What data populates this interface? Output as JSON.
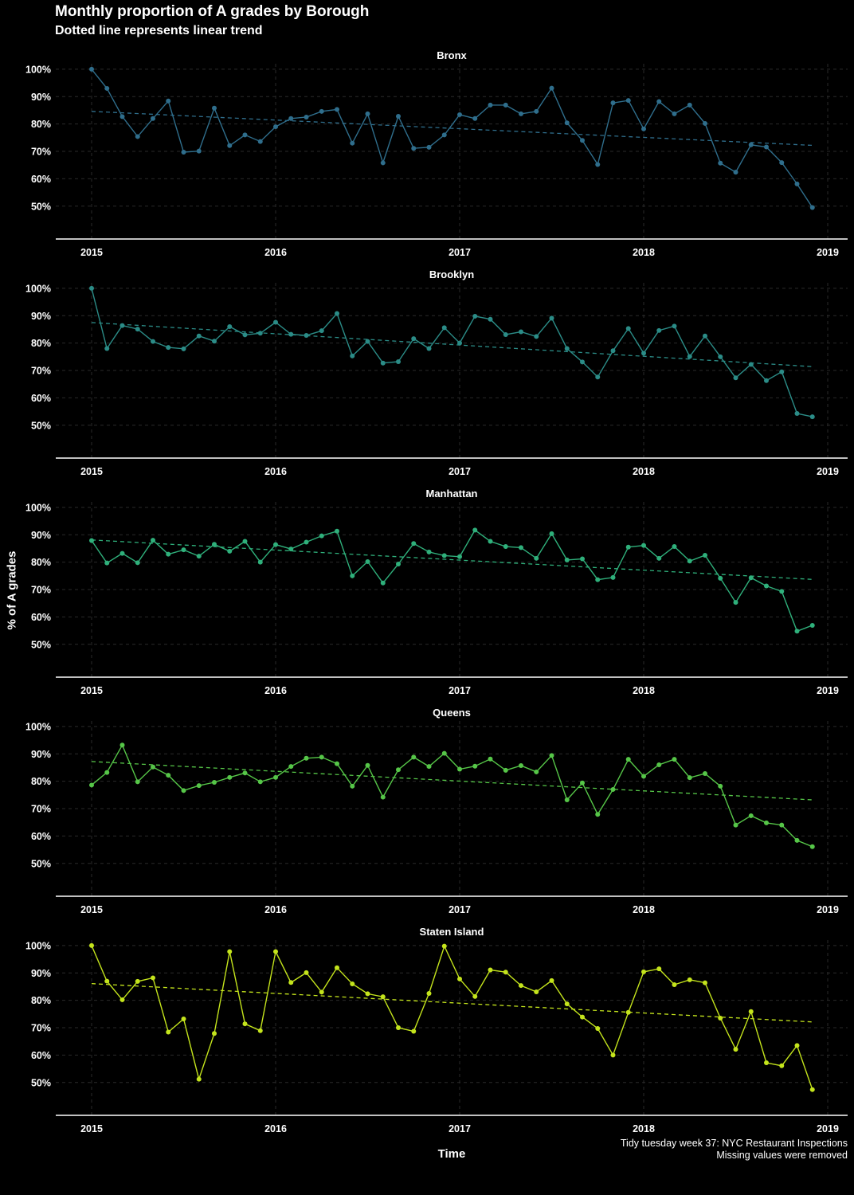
{
  "chart_data": {
    "type": "line",
    "title": "Monthly proportion of A grades by Borough",
    "subtitle": "Dotted line represents linear trend",
    "xlabel": "Time",
    "ylabel": "% of A grades",
    "caption": [
      "Tidy tuesday week 37: NYC Restaurant Inspections",
      "Missing values were removed"
    ],
    "x_ticks": [
      2015,
      2016,
      2017,
      2018,
      2019
    ],
    "y_ticks": [
      "50%",
      "60%",
      "70%",
      "80%",
      "90%",
      "100%"
    ],
    "ylim": [
      38,
      102
    ],
    "xlim": [
      2014.8,
      2019.1
    ],
    "grid": true,
    "x_start": 2015,
    "x_step_months": 1,
    "series": [
      {
        "name": "Bronx",
        "color": "#2f6e8c",
        "trend": [
          84.6,
          72.2
        ],
        "values": [
          100,
          93,
          82.7,
          75.4,
          82,
          88.4,
          69.7,
          70.1,
          85.8,
          72.1,
          76,
          73.6,
          79,
          82,
          82.5,
          84.6,
          85.3,
          73,
          83.7,
          65.8,
          82.8,
          71.1,
          71.5,
          76,
          83.4,
          82,
          86.9,
          86.9,
          83.7,
          84.6,
          93.1,
          80.4,
          74,
          65.2,
          87.7,
          88.6,
          78.2,
          88.2,
          83.7,
          86.9,
          80.2,
          65.7,
          62.4,
          72.4,
          71.6,
          65.9,
          58.1,
          49.5
        ]
      },
      {
        "name": "Brooklyn",
        "color": "#2b8c87",
        "trend": [
          87.5,
          71.4
        ],
        "values": [
          100,
          78,
          86.4,
          85.1,
          80.6,
          78.4,
          77.9,
          82.6,
          80.7,
          86,
          83,
          83.6,
          87.6,
          83.2,
          82.8,
          84.5,
          90.8,
          75.3,
          80.6,
          72.7,
          73.2,
          81.6,
          78,
          85.6,
          80,
          89.8,
          88.7,
          83.1,
          84.1,
          82.4,
          89.1,
          78,
          73.1,
          67.6,
          77.2,
          85.3,
          76.3,
          84.6,
          86.2,
          75.1,
          82.6,
          75,
          67.3,
          72.2,
          66.3,
          69.5,
          54.3,
          53.1
        ]
      },
      {
        "name": "Manhattan",
        "color": "#2fb07b",
        "trend": [
          88.1,
          73.7
        ],
        "values": [
          87.9,
          79.7,
          83.2,
          79.8,
          88,
          82.9,
          84.5,
          82.2,
          86.5,
          84,
          87.6,
          80,
          86.4,
          84.8,
          87.3,
          89.6,
          91.3,
          75,
          80.2,
          72.4,
          79.3,
          86.8,
          83.7,
          82.4,
          82,
          91.7,
          87.6,
          85.7,
          85.3,
          81.4,
          90.4,
          80.8,
          81.2,
          73.6,
          74.4,
          85.5,
          86.1,
          81.4,
          85.7,
          80.4,
          82.5,
          74.1,
          65.3,
          74.3,
          71.3,
          69.3,
          54.8,
          56.9
        ]
      },
      {
        "name": "Queens",
        "color": "#56c648",
        "trend": [
          87.2,
          73.2
        ],
        "values": [
          78.6,
          83.2,
          93.2,
          79.8,
          85.2,
          82.2,
          76.6,
          78.4,
          79.6,
          81.4,
          83,
          79.8,
          81.4,
          85.4,
          88.4,
          88.8,
          86.4,
          78.2,
          85.8,
          74.2,
          84.2,
          88.8,
          85.4,
          90.2,
          84.4,
          85.5,
          88.1,
          84,
          85.7,
          83.4,
          89.4,
          73.2,
          79.4,
          67.9,
          77,
          88,
          81.8,
          86,
          88,
          81.3,
          82.8,
          78.2,
          64,
          67.4,
          64.8,
          64,
          58.4,
          56.1
        ]
      },
      {
        "name": "Staten Island",
        "color": "#c4e41c",
        "trend": [
          86.1,
          72.1
        ],
        "values": [
          100,
          87,
          80.2,
          86.9,
          88.2,
          68.4,
          73.2,
          51.2,
          67.9,
          97.8,
          71.4,
          68.9,
          97.8,
          86.5,
          90.1,
          83,
          91.9,
          86,
          82.4,
          81.3,
          70,
          68.7,
          82.5,
          99.8,
          87.8,
          81.4,
          91.1,
          90.3,
          85.4,
          83.1,
          87.2,
          78.7,
          73.9,
          69.7,
          60,
          75.6,
          90.4,
          91.5,
          85.7,
          87.5,
          86.4,
          73.5,
          62.1,
          75.9,
          57.2,
          56.1,
          63.5,
          47.4
        ]
      }
    ]
  }
}
